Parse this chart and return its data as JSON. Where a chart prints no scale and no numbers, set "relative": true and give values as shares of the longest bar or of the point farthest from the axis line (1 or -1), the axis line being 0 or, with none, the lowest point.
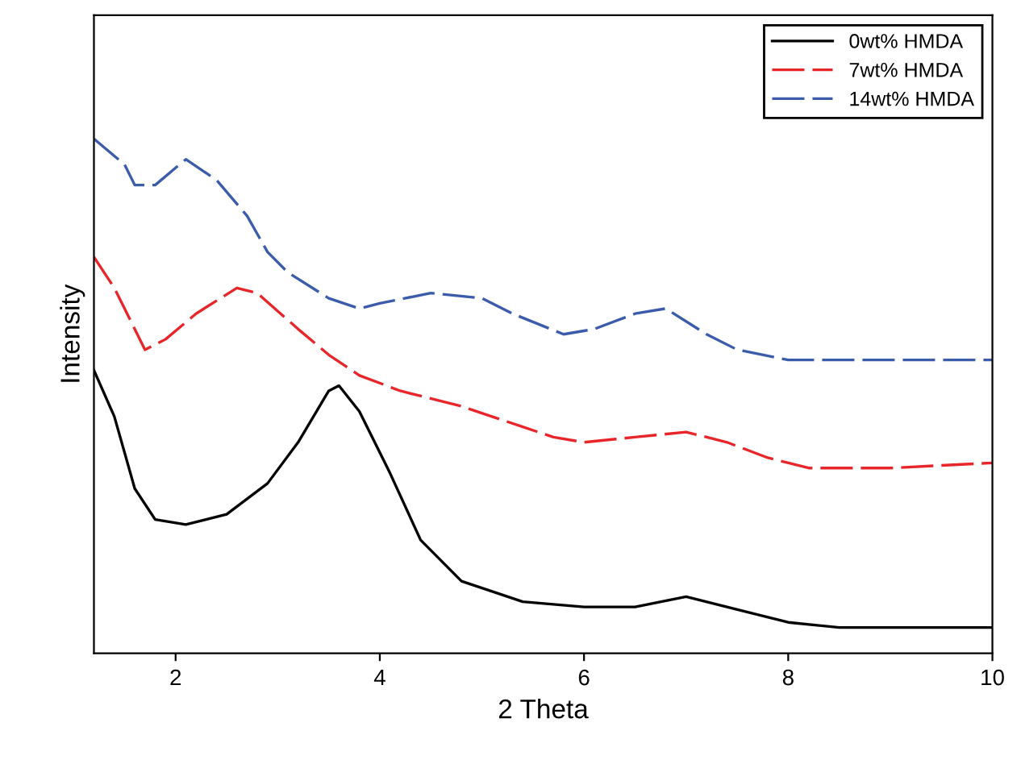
{
  "chart_data": {
    "type": "line",
    "xlabel": "2 Theta",
    "ylabel": "Intensity",
    "relative": true,
    "xlim": [
      1.2,
      10
    ],
    "xticks": [
      2,
      4,
      6,
      8,
      10
    ],
    "tick_labels": "x",
    "grid": false,
    "legend": "top right",
    "series": [
      {
        "name": "0wt% HMDA",
        "color": "#000000",
        "line_style": "solid",
        "x": [
          1.2,
          1.4,
          1.6,
          1.8,
          2.1,
          2.5,
          2.9,
          3.2,
          3.5,
          3.6,
          3.8,
          4.1,
          4.4,
          4.8,
          5.4,
          6.0,
          6.5,
          7.0,
          7.4,
          8.0,
          8.5,
          9.0,
          10
        ],
        "values": [
          0.55,
          0.46,
          0.32,
          0.26,
          0.25,
          0.27,
          0.33,
          0.41,
          0.51,
          0.52,
          0.47,
          0.35,
          0.22,
          0.14,
          0.1,
          0.09,
          0.09,
          0.11,
          0.09,
          0.06,
          0.05,
          0.05,
          0.05
        ]
      },
      {
        "name": "7wt% HMDA",
        "color": "#e8262a",
        "line_style": "dashed",
        "x": [
          1.2,
          1.4,
          1.7,
          1.9,
          2.2,
          2.6,
          2.8,
          3.2,
          3.5,
          3.8,
          4.2,
          4.8,
          5.4,
          5.7,
          6.0,
          6.5,
          7.0,
          7.4,
          7.8,
          8.2,
          9.0,
          10
        ],
        "values": [
          0.77,
          0.71,
          0.59,
          0.61,
          0.66,
          0.71,
          0.7,
          0.63,
          0.58,
          0.54,
          0.51,
          0.48,
          0.44,
          0.42,
          0.41,
          0.42,
          0.43,
          0.41,
          0.38,
          0.36,
          0.36,
          0.37
        ]
      },
      {
        "name": "14wt% HMDA",
        "color": "#3b5bab",
        "line_style": "dashed",
        "x": [
          1.2,
          1.5,
          1.6,
          1.8,
          2.1,
          2.4,
          2.7,
          2.9,
          3.1,
          3.5,
          3.8,
          4.0,
          4.5,
          5.0,
          5.3,
          5.8,
          6.1,
          6.5,
          6.8,
          7.2,
          7.5,
          8.0,
          8.5,
          9.0,
          9.5,
          10
        ],
        "values": [
          1.0,
          0.95,
          0.91,
          0.91,
          0.96,
          0.92,
          0.85,
          0.78,
          0.74,
          0.69,
          0.67,
          0.68,
          0.7,
          0.69,
          0.66,
          0.62,
          0.63,
          0.66,
          0.67,
          0.62,
          0.59,
          0.57,
          0.57,
          0.57,
          0.57,
          0.57
        ]
      }
    ]
  }
}
